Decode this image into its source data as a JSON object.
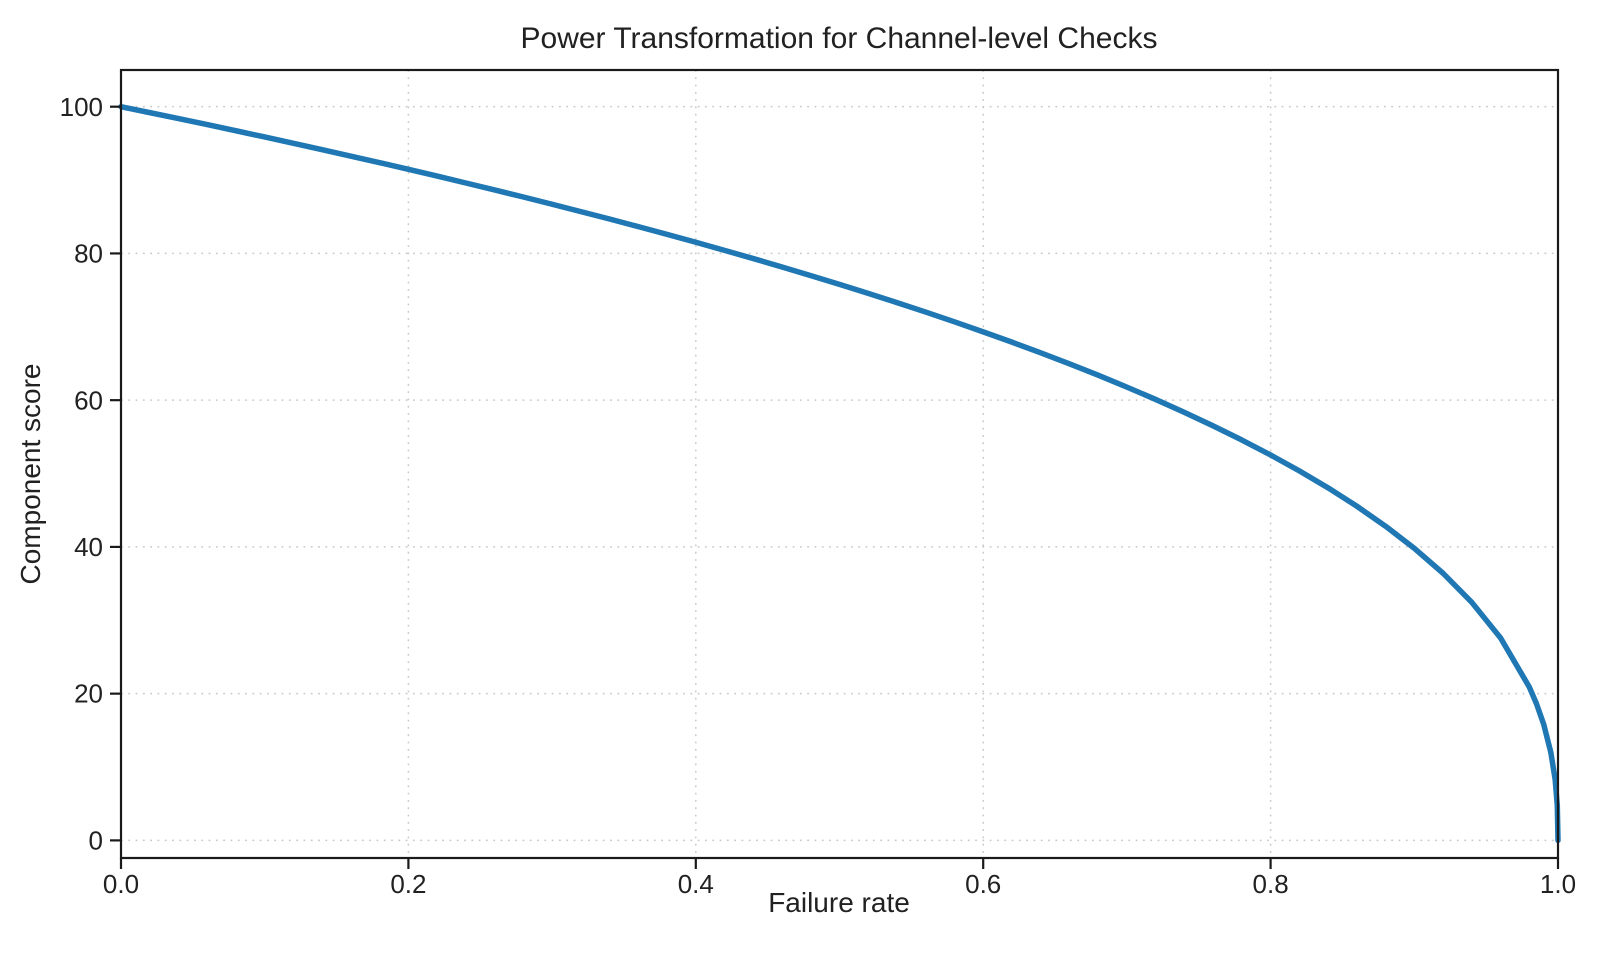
{
  "figure": {
    "background": "#ffffff",
    "text_color": "#212121",
    "grid_color": "#c9c9c9",
    "spine_color": "#1a1a1a"
  },
  "chart_data": {
    "type": "line",
    "title": "Power Transformation for Channel-level Checks",
    "xlabel": "Failure rate",
    "ylabel": "Component score",
    "xlim": [
      0,
      1
    ],
    "ylim": [
      -2.4,
      105
    ],
    "x_tick_values": [
      0.0,
      0.2,
      0.4,
      0.6,
      0.8,
      1.0
    ],
    "x_tick_labels": [
      "0.0",
      "0.2",
      "0.4",
      "0.6",
      "0.8",
      "1.0"
    ],
    "y_tick_values": [
      0,
      20,
      40,
      60,
      80,
      100
    ],
    "y_tick_labels": [
      "0",
      "20",
      "40",
      "60",
      "80",
      "100"
    ],
    "grid": true,
    "grid_style": "dotted",
    "legend_position": "none",
    "series": [
      {
        "name": "Component score",
        "formula": "score = 100 * (1 - failure_rate)^0.4",
        "color": "#1f77b4",
        "line_width": 5.5,
        "x": [
          0.0,
          0.02,
          0.04,
          0.06,
          0.08,
          0.1,
          0.12,
          0.14,
          0.16,
          0.18,
          0.2,
          0.22,
          0.24,
          0.26,
          0.28,
          0.3,
          0.32,
          0.34,
          0.36,
          0.38,
          0.4,
          0.42,
          0.44,
          0.46,
          0.48,
          0.5,
          0.52,
          0.54,
          0.56,
          0.58,
          0.6,
          0.62,
          0.64,
          0.66,
          0.68,
          0.7,
          0.72,
          0.74,
          0.76,
          0.78,
          0.8,
          0.82,
          0.84,
          0.86,
          0.88,
          0.9,
          0.92,
          0.94,
          0.96,
          0.98,
          0.985,
          0.99,
          0.995,
          0.998,
          0.9995,
          1.0
        ],
        "y": [
          100.0,
          99.19,
          98.38,
          97.56,
          96.72,
          95.87,
          95.01,
          94.14,
          93.26,
          92.37,
          91.46,
          90.54,
          89.6,
          88.65,
          87.69,
          86.7,
          85.7,
          84.69,
          83.65,
          82.6,
          81.52,
          80.42,
          79.3,
          78.15,
          76.98,
          75.79,
          74.56,
          73.3,
          72.01,
          70.68,
          69.31,
          67.91,
          66.45,
          64.95,
          63.4,
          61.78,
          60.1,
          58.34,
          56.5,
          54.57,
          52.53,
          50.36,
          48.05,
          45.55,
          42.82,
          39.81,
          36.41,
          32.45,
          27.6,
          20.91,
          18.64,
          15.85,
          12.01,
          8.33,
          4.78,
          0.0
        ]
      }
    ]
  }
}
